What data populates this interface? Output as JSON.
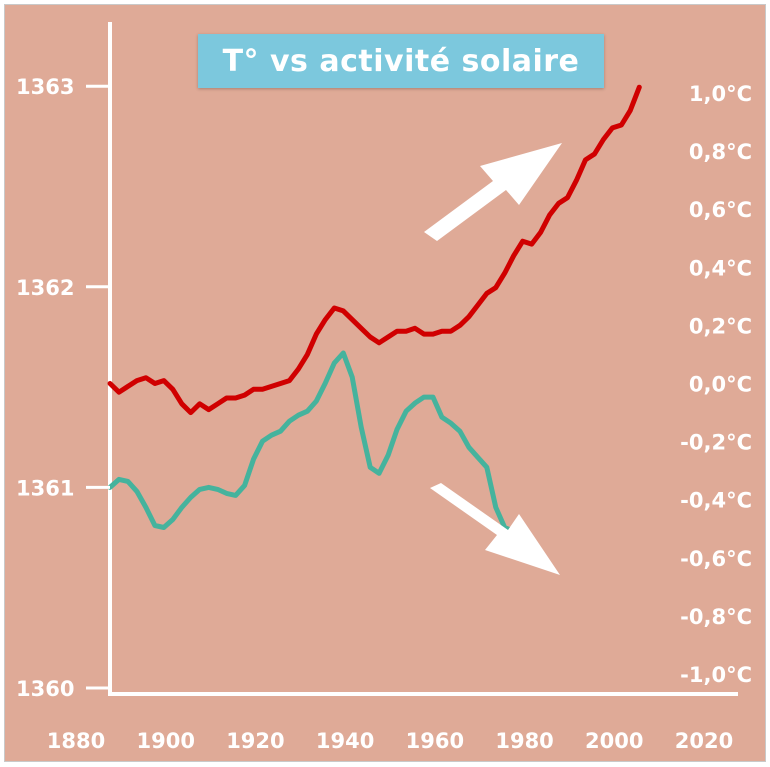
{
  "chart_data": {
    "type": "line",
    "title": "T° vs activité solaire",
    "xlabel": "",
    "ylabel_left": "",
    "ylabel_right": "",
    "x_ticks": [
      "1880",
      "1900",
      "1920",
      "1940",
      "1960",
      "1980",
      "2000",
      "2020"
    ],
    "xlim": [
      1880,
      2020
    ],
    "left_axis": {
      "ticks": [
        "1360",
        "1361",
        "1362",
        "1363"
      ],
      "ylim": [
        1359.97,
        1363.33
      ]
    },
    "right_axis": {
      "ticks": [
        "1,0°C",
        "0,8°C",
        "0,6°C",
        "0,4°C",
        "0,2°C",
        "0,0°C",
        "-0,2°C",
        "-0,4°C",
        "-0,6°C",
        "-0,8°C",
        "-1,0°C"
      ],
      "ylim": [
        -1.0,
        1.0
      ]
    },
    "series": [
      {
        "axis": "right",
        "color": "#d00000",
        "points": [
          [
            1880,
            0.0
          ],
          [
            1882,
            -0.03
          ],
          [
            1884,
            -0.01
          ],
          [
            1886,
            0.01
          ],
          [
            1888,
            0.02
          ],
          [
            1890,
            0.0
          ],
          [
            1892,
            0.01
          ],
          [
            1894,
            -0.02
          ],
          [
            1896,
            -0.07
          ],
          [
            1898,
            -0.1
          ],
          [
            1900,
            -0.07
          ],
          [
            1902,
            -0.09
          ],
          [
            1904,
            -0.07
          ],
          [
            1906,
            -0.05
          ],
          [
            1908,
            -0.05
          ],
          [
            1910,
            -0.04
          ],
          [
            1912,
            -0.02
          ],
          [
            1914,
            -0.02
          ],
          [
            1916,
            -0.01
          ],
          [
            1918,
            0.0
          ],
          [
            1920,
            0.01
          ],
          [
            1922,
            0.05
          ],
          [
            1924,
            0.1
          ],
          [
            1926,
            0.17
          ],
          [
            1928,
            0.22
          ],
          [
            1930,
            0.26
          ],
          [
            1932,
            0.25
          ],
          [
            1934,
            0.22
          ],
          [
            1936,
            0.19
          ],
          [
            1938,
            0.16
          ],
          [
            1940,
            0.14
          ],
          [
            1942,
            0.16
          ],
          [
            1944,
            0.18
          ],
          [
            1946,
            0.18
          ],
          [
            1948,
            0.19
          ],
          [
            1950,
            0.17
          ],
          [
            1952,
            0.17
          ],
          [
            1954,
            0.18
          ],
          [
            1956,
            0.18
          ],
          [
            1958,
            0.2
          ],
          [
            1960,
            0.23
          ],
          [
            1962,
            0.27
          ],
          [
            1964,
            0.31
          ],
          [
            1966,
            0.33
          ],
          [
            1968,
            0.38
          ],
          [
            1970,
            0.44
          ],
          [
            1972,
            0.49
          ],
          [
            1974,
            0.48
          ],
          [
            1976,
            0.52
          ],
          [
            1978,
            0.58
          ],
          [
            1980,
            0.62
          ],
          [
            1982,
            0.64
          ],
          [
            1984,
            0.7
          ],
          [
            1986,
            0.77
          ],
          [
            1988,
            0.79
          ],
          [
            1990,
            0.84
          ],
          [
            1992,
            0.88
          ],
          [
            1994,
            0.89
          ],
          [
            1996,
            0.94
          ],
          [
            1998,
            1.02
          ]
        ]
      },
      {
        "axis": "left",
        "color": "#45b39d",
        "points": [
          [
            1880,
            1361.0
          ],
          [
            1882,
            1361.04
          ],
          [
            1884,
            1361.03
          ],
          [
            1886,
            1360.98
          ],
          [
            1888,
            1360.9
          ],
          [
            1890,
            1360.81
          ],
          [
            1892,
            1360.8
          ],
          [
            1894,
            1360.84
          ],
          [
            1896,
            1360.9
          ],
          [
            1898,
            1360.95
          ],
          [
            1900,
            1360.99
          ],
          [
            1902,
            1361.0
          ],
          [
            1904,
            1360.99
          ],
          [
            1906,
            1360.97
          ],
          [
            1908,
            1360.96
          ],
          [
            1910,
            1361.01
          ],
          [
            1912,
            1361.14
          ],
          [
            1914,
            1361.23
          ],
          [
            1916,
            1361.26
          ],
          [
            1918,
            1361.28
          ],
          [
            1920,
            1361.33
          ],
          [
            1922,
            1361.36
          ],
          [
            1924,
            1361.38
          ],
          [
            1926,
            1361.43
          ],
          [
            1928,
            1361.52
          ],
          [
            1930,
            1361.62
          ],
          [
            1932,
            1361.67
          ],
          [
            1934,
            1361.55
          ],
          [
            1936,
            1361.3
          ],
          [
            1938,
            1361.1
          ],
          [
            1940,
            1361.07
          ],
          [
            1942,
            1361.16
          ],
          [
            1944,
            1361.29
          ],
          [
            1946,
            1361.38
          ],
          [
            1948,
            1361.42
          ],
          [
            1950,
            1361.45
          ],
          [
            1952,
            1361.45
          ],
          [
            1954,
            1361.35
          ],
          [
            1956,
            1361.32
          ],
          [
            1958,
            1361.28
          ],
          [
            1960,
            1361.2
          ],
          [
            1962,
            1361.15
          ],
          [
            1964,
            1361.1
          ],
          [
            1966,
            1360.9
          ],
          [
            1968,
            1360.8
          ],
          [
            1970,
            1360.78
          ],
          [
            1972,
            1360.75
          ],
          [
            1974,
            1360.72
          ]
        ]
      }
    ]
  }
}
